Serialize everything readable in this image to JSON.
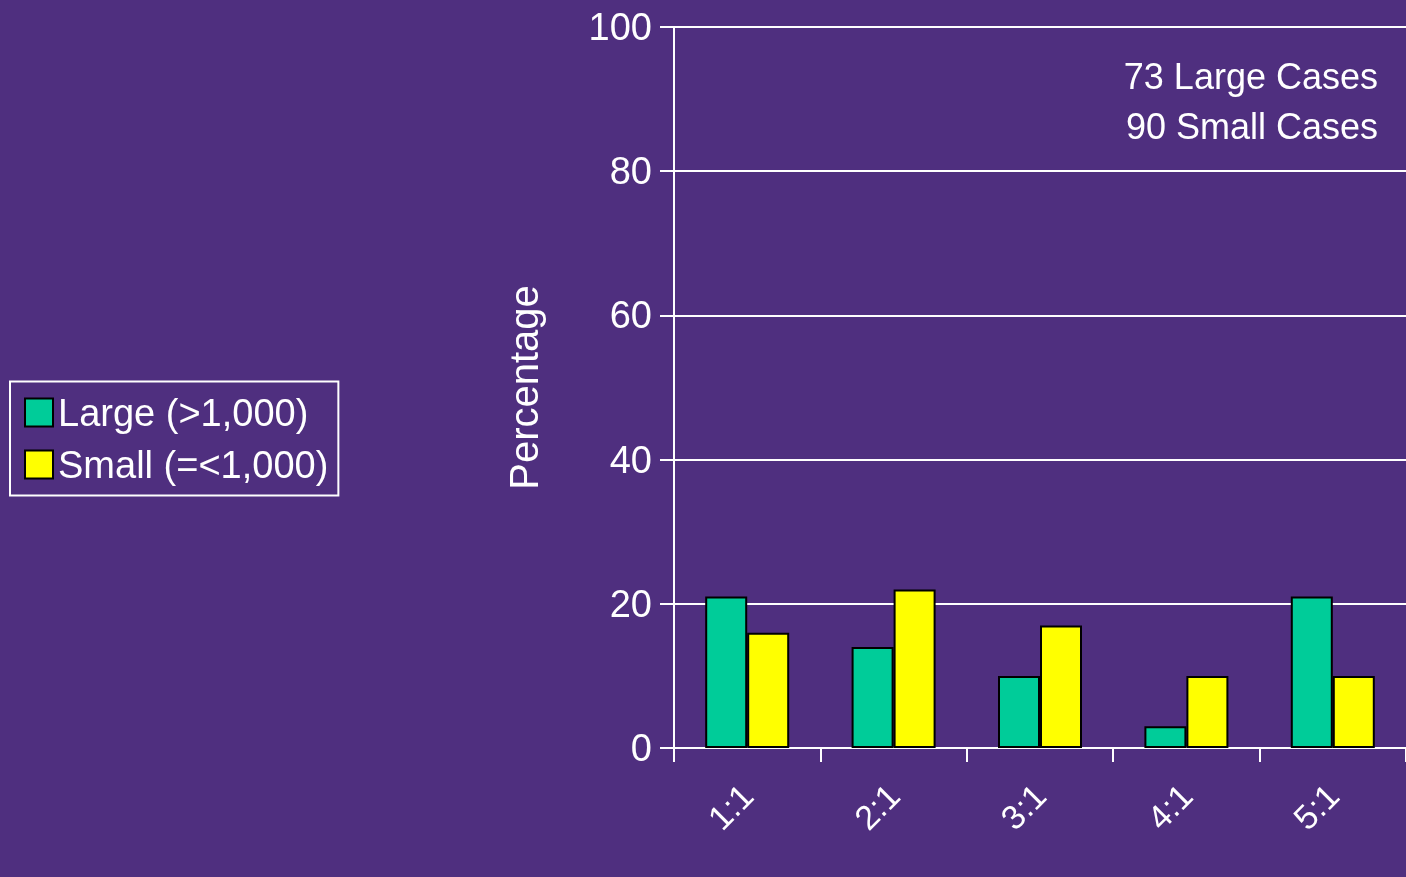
{
  "chart_data": {
    "type": "bar",
    "ylabel": "Percentage",
    "categories": [
      "1:1",
      "2:1",
      "3:1",
      "4:1",
      "5:1"
    ],
    "series": [
      {
        "name": "Large (>1,000)",
        "color": "#00cc99",
        "values": [
          21,
          14,
          10,
          3,
          21
        ]
      },
      {
        "name": "Small (=<1,000)",
        "color": "#ffff00",
        "values": [
          16,
          22,
          17,
          10,
          10
        ]
      }
    ],
    "ylim": [
      0,
      100
    ],
    "yticks": [
      0,
      20,
      40,
      60,
      80,
      100
    ],
    "grid": "y",
    "legend": "left",
    "annotations": [
      "73 Large Cases",
      "90 Small Cases"
    ]
  }
}
